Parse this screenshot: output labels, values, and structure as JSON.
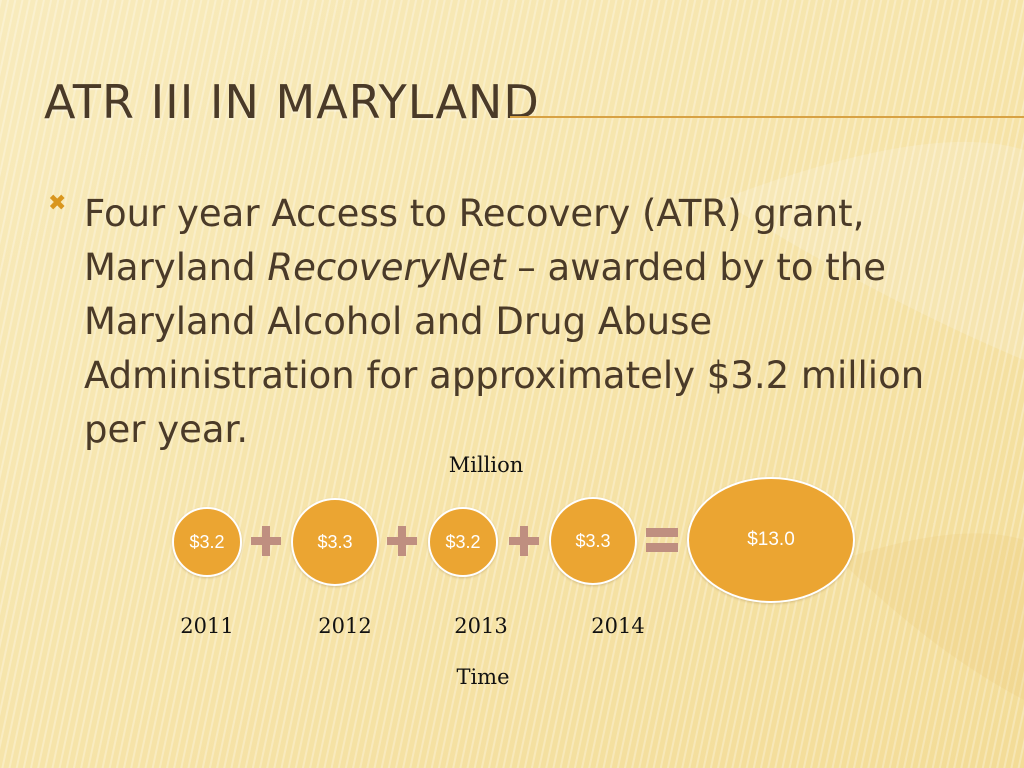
{
  "slide": {
    "title": "ATR III IN MARYLAND",
    "bullet": {
      "text_before": "Four year Access to Recovery (ATR) grant, Maryland ",
      "text_italic": "RecoveryNet",
      "text_after": " – awarded by to the Maryland Alcohol and Drug Abuse Administration for approximately $3.2 million per year."
    }
  },
  "diagram": {
    "y_unit": "Million",
    "x_unit": "Time",
    "amounts": [
      {
        "label": "$3.2",
        "value": 3.2,
        "year": "2011"
      },
      {
        "label": "$3.3",
        "value": 3.3,
        "year": "2012"
      },
      {
        "label": "$3.2",
        "value": 3.2,
        "year": "2013"
      },
      {
        "label": "$3.3",
        "value": 3.3,
        "year": "2014"
      }
    ],
    "total": {
      "label": "$13.0",
      "value": 13.0
    },
    "operators": [
      "+",
      "+",
      "+",
      "="
    ]
  },
  "colors": {
    "background": "#f7e7b0",
    "accent": "#eba532",
    "operator": "#bf8f80",
    "title_text": "#4a3a28",
    "rule": "#d8a244"
  }
}
